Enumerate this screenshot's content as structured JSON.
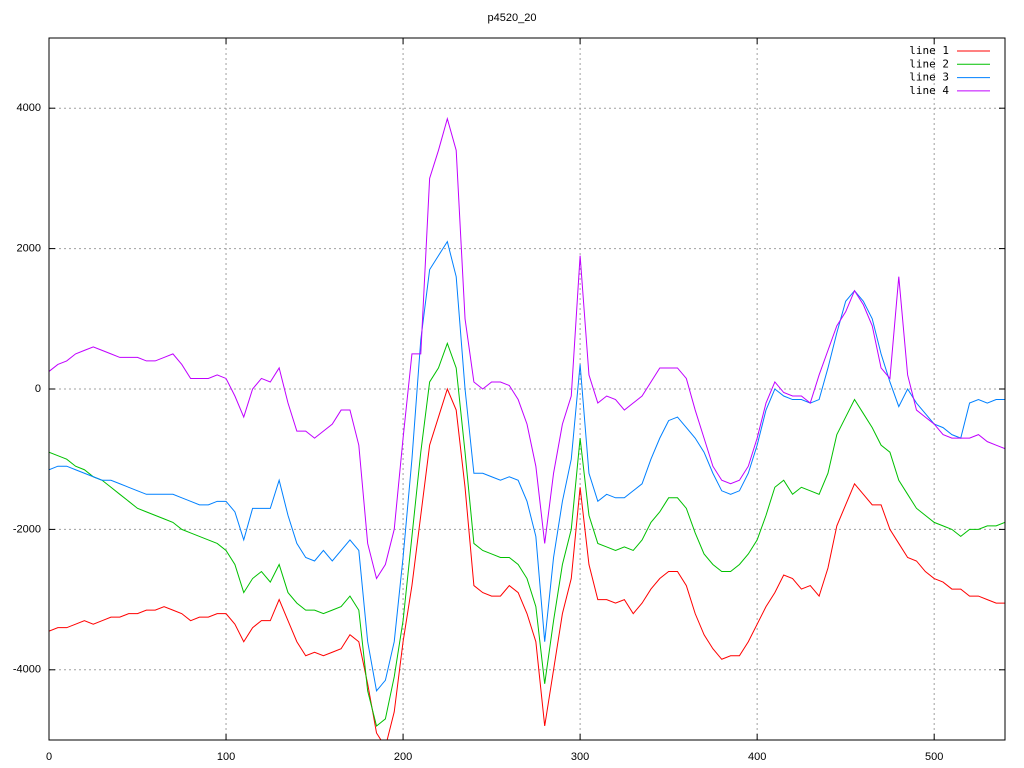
{
  "chart_data": {
    "type": "line",
    "title": "p4520_20",
    "x": [
      0,
      5,
      10,
      15,
      20,
      25,
      30,
      35,
      40,
      45,
      50,
      55,
      60,
      65,
      70,
      75,
      80,
      85,
      90,
      95,
      100,
      105,
      110,
      115,
      120,
      125,
      130,
      135,
      140,
      145,
      150,
      155,
      160,
      165,
      170,
      175,
      180,
      185,
      190,
      195,
      200,
      205,
      210,
      215,
      220,
      225,
      230,
      235,
      240,
      245,
      250,
      255,
      260,
      265,
      270,
      275,
      280,
      285,
      290,
      295,
      300,
      305,
      310,
      315,
      320,
      325,
      330,
      335,
      340,
      345,
      350,
      355,
      360,
      365,
      370,
      375,
      380,
      385,
      390,
      395,
      400,
      405,
      410,
      415,
      420,
      425,
      430,
      435,
      440,
      445,
      450,
      455,
      460,
      465,
      470,
      475,
      480,
      485,
      490,
      495,
      500,
      505,
      510,
      515,
      520,
      525,
      530,
      535,
      540
    ],
    "series": [
      {
        "name": "line 1",
        "color": "#ff0000",
        "values": [
          -3450,
          -3400,
          -3400,
          -3350,
          -3300,
          -3350,
          -3300,
          -3250,
          -3250,
          -3200,
          -3200,
          -3150,
          -3150,
          -3100,
          -3150,
          -3200,
          -3300,
          -3250,
          -3250,
          -3200,
          -3200,
          -3350,
          -3600,
          -3400,
          -3300,
          -3300,
          -3000,
          -3300,
          -3600,
          -3800,
          -3750,
          -3800,
          -3750,
          -3700,
          -3500,
          -3600,
          -4200,
          -4900,
          -5100,
          -4600,
          -3600,
          -2800,
          -1800,
          -800,
          -400,
          0,
          -300,
          -1400,
          -2800,
          -2900,
          -2950,
          -2950,
          -2800,
          -2900,
          -3200,
          -3600,
          -4800,
          -4000,
          -3200,
          -2700,
          -1400,
          -2500,
          -3000,
          -3000,
          -3050,
          -3000,
          -3200,
          -3050,
          -2850,
          -2700,
          -2600,
          -2600,
          -2800,
          -3200,
          -3500,
          -3700,
          -3850,
          -3800,
          -3800,
          -3600,
          -3350,
          -3100,
          -2900,
          -2650,
          -2700,
          -2850,
          -2800,
          -2950,
          -2550,
          -1950,
          -1650,
          -1350,
          -1500,
          -1650,
          -1650,
          -2000,
          -2200,
          -2400,
          -2450,
          -2600,
          -2700,
          -2750,
          -2850,
          -2850,
          -2950,
          -2950,
          -3000,
          -3050,
          -3050
        ]
      },
      {
        "name": "line 2",
        "color": "#00c000",
        "values": [
          -900,
          -950,
          -1000,
          -1100,
          -1150,
          -1250,
          -1300,
          -1400,
          -1500,
          -1600,
          -1700,
          -1750,
          -1800,
          -1850,
          -1900,
          -2000,
          -2050,
          -2100,
          -2150,
          -2200,
          -2300,
          -2500,
          -2900,
          -2700,
          -2600,
          -2750,
          -2500,
          -2900,
          -3050,
          -3150,
          -3150,
          -3200,
          -3150,
          -3100,
          -2950,
          -3150,
          -4300,
          -4800,
          -4700,
          -4100,
          -3300,
          -2100,
          -900,
          100,
          300,
          650,
          300,
          -900,
          -2200,
          -2300,
          -2350,
          -2400,
          -2400,
          -2500,
          -2700,
          -3100,
          -4200,
          -3300,
          -2500,
          -2000,
          -700,
          -1800,
          -2200,
          -2250,
          -2300,
          -2250,
          -2300,
          -2150,
          -1900,
          -1750,
          -1550,
          -1550,
          -1700,
          -2050,
          -2350,
          -2500,
          -2600,
          -2600,
          -2500,
          -2350,
          -2150,
          -1800,
          -1400,
          -1300,
          -1500,
          -1400,
          -1450,
          -1500,
          -1200,
          -650,
          -400,
          -150,
          -350,
          -550,
          -800,
          -900,
          -1300,
          -1500,
          -1700,
          -1800,
          -1900,
          -1950,
          -2000,
          -2100,
          -2000,
          -2000,
          -1950,
          -1950,
          -1900
        ]
      },
      {
        "name": "line 3",
        "color": "#0080ff",
        "values": [
          -1150,
          -1100,
          -1100,
          -1150,
          -1200,
          -1250,
          -1300,
          -1300,
          -1350,
          -1400,
          -1450,
          -1500,
          -1500,
          -1500,
          -1500,
          -1550,
          -1600,
          -1650,
          -1650,
          -1600,
          -1600,
          -1750,
          -2150,
          -1700,
          -1700,
          -1700,
          -1300,
          -1800,
          -2200,
          -2400,
          -2450,
          -2300,
          -2450,
          -2300,
          -2150,
          -2300,
          -3600,
          -4300,
          -4150,
          -3600,
          -2400,
          -1000,
          700,
          1700,
          1900,
          2100,
          1600,
          0,
          -1200,
          -1200,
          -1250,
          -1300,
          -1250,
          -1300,
          -1600,
          -2100,
          -3600,
          -2400,
          -1600,
          -1000,
          350,
          -1200,
          -1600,
          -1500,
          -1550,
          -1550,
          -1450,
          -1350,
          -1000,
          -700,
          -450,
          -400,
          -550,
          -700,
          -900,
          -1200,
          -1450,
          -1500,
          -1450,
          -1200,
          -800,
          -300,
          0,
          -100,
          -150,
          -150,
          -200,
          -150,
          300,
          800,
          1250,
          1400,
          1250,
          1000,
          500,
          100,
          -250,
          0,
          -200,
          -350,
          -500,
          -550,
          -650,
          -700,
          -200,
          -150,
          -200,
          -150,
          -150
        ]
      },
      {
        "name": "line 4",
        "color": "#c000ff",
        "values": [
          250,
          350,
          400,
          500,
          550,
          600,
          550,
          500,
          450,
          450,
          450,
          400,
          400,
          450,
          500,
          350,
          150,
          150,
          150,
          200,
          150,
          -100,
          -400,
          0,
          150,
          100,
          300,
          -200,
          -600,
          -600,
          -700,
          -600,
          -500,
          -300,
          -300,
          -800,
          -2200,
          -2700,
          -2500,
          -2000,
          -700,
          500,
          500,
          3000,
          3400,
          3850,
          3400,
          1000,
          100,
          0,
          100,
          100,
          50,
          -150,
          -500,
          -1100,
          -2200,
          -1200,
          -500,
          -100,
          1900,
          200,
          -200,
          -100,
          -150,
          -300,
          -200,
          -100,
          100,
          300,
          300,
          300,
          150,
          -300,
          -700,
          -1100,
          -1300,
          -1350,
          -1300,
          -1100,
          -700,
          -200,
          100,
          -50,
          -100,
          -100,
          -200,
          200,
          550,
          900,
          1100,
          1400,
          1200,
          900,
          300,
          150,
          1600,
          200,
          -300,
          -400,
          -500,
          -650,
          -700,
          -700,
          -700,
          -650,
          -750,
          -800,
          -850
        ]
      }
    ],
    "xlim": [
      0,
      540
    ],
    "xticks": [
      0,
      100,
      200,
      300,
      400,
      500
    ],
    "ylim": [
      -5000,
      5000
    ],
    "yticks": [
      -4000,
      -2000,
      0,
      2000,
      4000
    ],
    "grid": true,
    "legend": "top-right"
  }
}
